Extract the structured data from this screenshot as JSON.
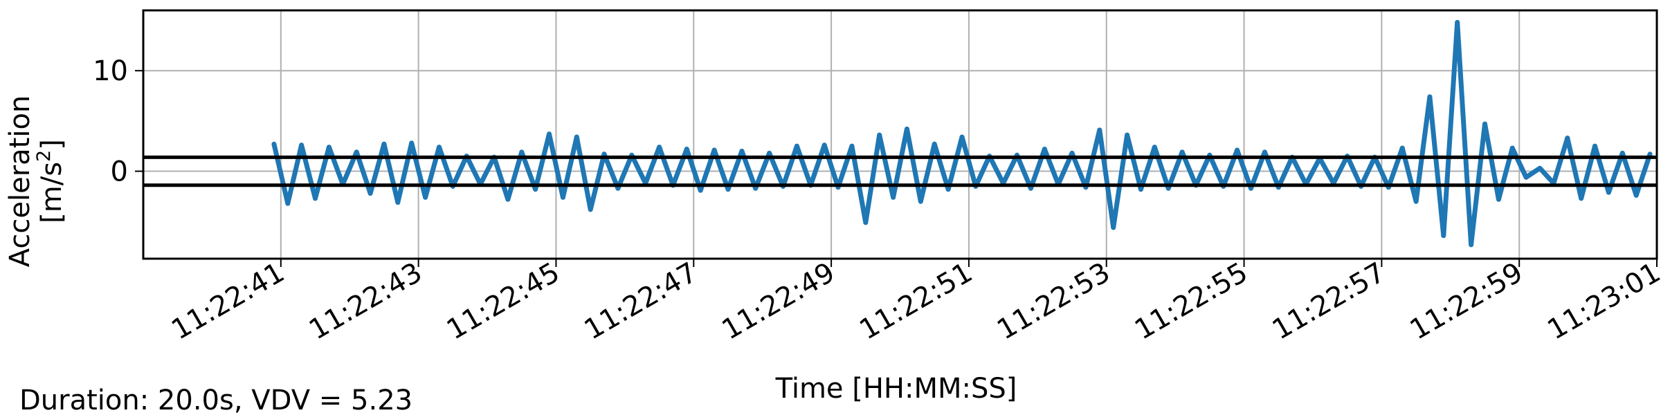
{
  "chart_data": {
    "type": "line",
    "xlabel": "Time [HH:MM:SS]",
    "ylabel_line1": "Acceleration",
    "ylabel_line2_base": "[m/s",
    "ylabel_line2_sup": "2",
    "ylabel_line2_end": "]",
    "footer": "Duration: 20.0s, VDV = 5.23",
    "xlim": [
      "11:22:39.0",
      "11:23:01.0"
    ],
    "ylim": [
      -8.7,
      16
    ],
    "x_ticks": [
      "11:22:41",
      "11:22:43",
      "11:22:45",
      "11:22:47",
      "11:22:49",
      "11:22:51",
      "11:22:53",
      "11:22:55",
      "11:22:57",
      "11:22:59",
      "11:23:01"
    ],
    "y_ticks": [
      0,
      10
    ],
    "grid": true,
    "threshold_lines": [
      1.39,
      -1.39
    ],
    "series": [
      {
        "color": "#1f77b4",
        "x": [
          "11:22:40.9",
          "11:22:41.1",
          "11:22:41.3",
          "11:22:41.5",
          "11:22:41.7",
          "11:22:41.9",
          "11:22:42.1",
          "11:22:42.3",
          "11:22:42.5",
          "11:22:42.7",
          "11:22:42.9",
          "11:22:43.1",
          "11:22:43.3",
          "11:22:43.5",
          "11:22:43.7",
          "11:22:43.9",
          "11:22:44.1",
          "11:22:44.3",
          "11:22:44.5",
          "11:22:44.7",
          "11:22:44.9",
          "11:22:45.1",
          "11:22:45.3",
          "11:22:45.5",
          "11:22:45.7",
          "11:22:45.9",
          "11:22:46.1",
          "11:22:46.3",
          "11:22:46.5",
          "11:22:46.7",
          "11:22:46.9",
          "11:22:47.1",
          "11:22:47.3",
          "11:22:47.5",
          "11:22:47.7",
          "11:22:47.9",
          "11:22:48.1",
          "11:22:48.3",
          "11:22:48.5",
          "11:22:48.7",
          "11:22:48.9",
          "11:22:49.1",
          "11:22:49.3",
          "11:22:49.5",
          "11:22:49.7",
          "11:22:49.9",
          "11:22:50.1",
          "11:22:50.3",
          "11:22:50.5",
          "11:22:50.7",
          "11:22:50.9",
          "11:22:51.1",
          "11:22:51.3",
          "11:22:51.5",
          "11:22:51.7",
          "11:22:51.9",
          "11:22:52.1",
          "11:22:52.3",
          "11:22:52.5",
          "11:22:52.7",
          "11:22:52.9",
          "11:22:53.1",
          "11:22:53.3",
          "11:22:53.5",
          "11:22:53.7",
          "11:22:53.9",
          "11:22:54.1",
          "11:22:54.3",
          "11:22:54.5",
          "11:22:54.7",
          "11:22:54.9",
          "11:22:55.1",
          "11:22:55.3",
          "11:22:55.5",
          "11:22:55.7",
          "11:22:55.9",
          "11:22:56.1",
          "11:22:56.3",
          "11:22:56.5",
          "11:22:56.7",
          "11:22:56.9",
          "11:22:57.1",
          "11:22:57.3",
          "11:22:57.5",
          "11:22:57.7",
          "11:22:57.9",
          "11:22:58.1",
          "11:22:58.3",
          "11:22:58.5",
          "11:22:58.7",
          "11:22:58.9",
          "11:22:59.1",
          "11:22:59.3",
          "11:22:59.5",
          "11:22:59.7",
          "11:22:59.9",
          "11:23:00.1",
          "11:23:00.3",
          "11:23:00.5",
          "11:23:00.7",
          "11:23:00.9"
        ],
        "y": [
          2.7,
          -3.2,
          2.6,
          -2.7,
          2.4,
          -1.3,
          1.9,
          -2.2,
          2.7,
          -3.1,
          2.8,
          -2.6,
          2.4,
          -1.5,
          1.5,
          -1.3,
          1.4,
          -2.8,
          1.9,
          -1.8,
          3.7,
          -2.6,
          3.4,
          -3.8,
          1.7,
          -1.7,
          1.6,
          -1.2,
          2.4,
          -1.4,
          2.2,
          -1.9,
          2.1,
          -1.8,
          2.0,
          -1.7,
          1.8,
          -1.5,
          2.5,
          -1.4,
          2.6,
          -1.6,
          2.5,
          -5.1,
          3.6,
          -2.6,
          4.2,
          -3.0,
          2.7,
          -1.8,
          3.4,
          -1.5,
          1.5,
          -1.2,
          1.6,
          -1.7,
          2.2,
          -1.3,
          1.8,
          -1.6,
          4.1,
          -5.6,
          3.6,
          -1.8,
          2.4,
          -1.7,
          1.9,
          -1.4,
          1.6,
          -1.5,
          2.1,
          -1.7,
          1.9,
          -1.6,
          1.4,
          -1.3,
          1.3,
          -1.2,
          1.5,
          -1.5,
          1.4,
          -1.6,
          2.3,
          -3.0,
          7.4,
          -6.4,
          14.8,
          -7.3,
          4.7,
          -2.8,
          2.3,
          -0.6,
          0.3,
          -1.2,
          3.3,
          -2.7,
          2.5,
          -2.1,
          1.8,
          -2.4,
          1.7
        ]
      }
    ]
  }
}
